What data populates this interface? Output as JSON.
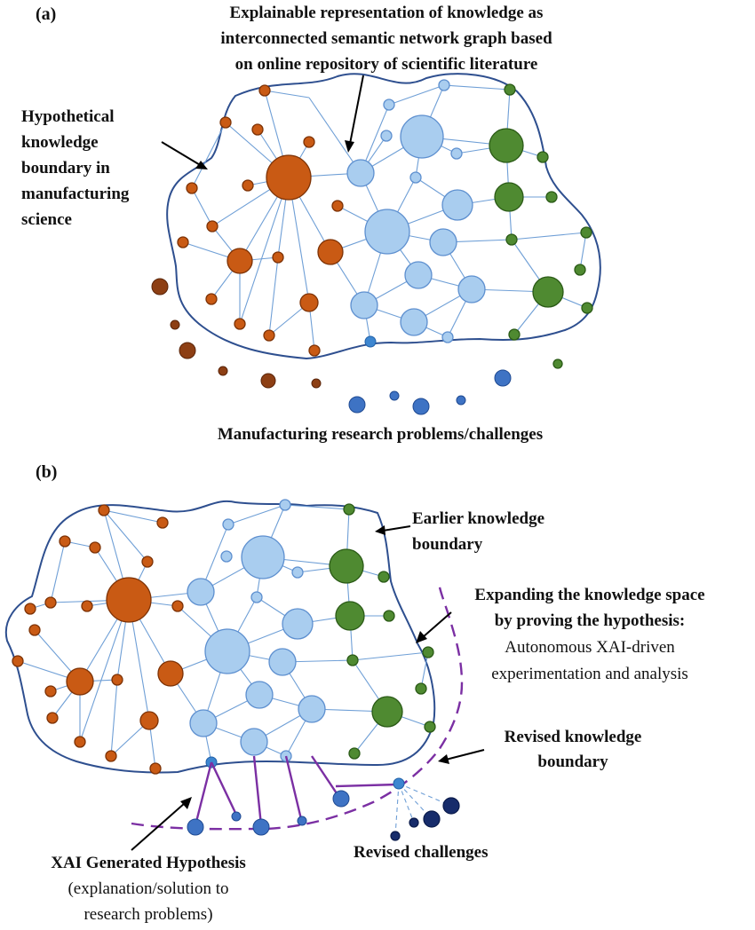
{
  "panel_a": {
    "label": "(a)",
    "title_lines": [
      "Explainable representation of knowledge as",
      "interconnected semantic network graph based",
      "on online repository of scientific literature"
    ],
    "boundary_lines": [
      "Hypothetical",
      "knowledge",
      "boundary in",
      "manufacturing",
      "science"
    ],
    "problems_label": "Manufacturing research problems/challenges"
  },
  "panel_b": {
    "label": "(b)",
    "earlier_boundary_lines": [
      "Earlier knowledge",
      "boundary"
    ],
    "expanding_title_lines": [
      "Expanding the knowledge space",
      "by proving the hypothesis:"
    ],
    "expanding_body_lines": [
      "Autonomous XAI-driven",
      "experimentation and analysis"
    ],
    "revised_boundary_lines": [
      "Revised knowledge",
      "boundary"
    ],
    "revised_challenges": "Revised challenges",
    "xai_title": "XAI Generated Hypothesis",
    "xai_body_lines": [
      "(explanation/solution to",
      "research problems)"
    ]
  },
  "colors": {
    "light_blue_node": "#a9cdef",
    "orange_node": "#c95a14",
    "green_node": "#4f8a31",
    "boundary": "#2e4f8f",
    "hypothesis_purple": "#7b2fa3"
  }
}
